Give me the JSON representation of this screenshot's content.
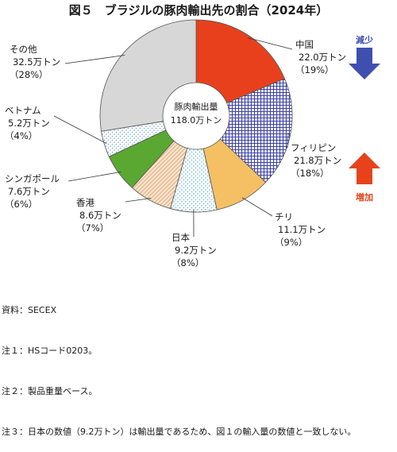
{
  "title": "図５　ブラジルの豚肉輸出先の割合（2024年）",
  "center_label": {
    "line1": "豚肉輸出量",
    "line2": "118.0万トン"
  },
  "trend_labels": {
    "decrease": "減少",
    "increase": "増加"
  },
  "colors": {
    "中国": "#e8401c",
    "フィリピン": "#3a3fa6",
    "チリ": "#f5c064",
    "日本": "#a6d8e6",
    "香港": "#f0c9a0",
    "シンガポール": "#5aa832",
    "ベトナム": "#9fc0e0",
    "その他": "#d7d7d7",
    "decrease_arrow": "#3f4fb0",
    "increase_arrow": "#e6431c"
  },
  "chart_data": {
    "type": "pie",
    "donut": true,
    "unit": "万トン",
    "total": 118.0,
    "categories": [
      "中国",
      "フィリピン",
      "チリ",
      "日本",
      "香港",
      "シンガポール",
      "ベトナム",
      "その他"
    ],
    "values": [
      22.0,
      21.8,
      11.1,
      9.2,
      8.6,
      7.6,
      5.2,
      32.5
    ],
    "percent": [
      19,
      18,
      9,
      8,
      7,
      6,
      4,
      28
    ],
    "value_labels": [
      "22.0万トン",
      "21.8万トン",
      "11.1万トン",
      "9.2万トン",
      "8.6万トン",
      "7.6万トン",
      "5.2万トン",
      "32.5万トン"
    ],
    "percent_labels": [
      "（19%）",
      "（18%）",
      "（9%）",
      "（8%）",
      "（7%）",
      "（6%）",
      "（4%）",
      "（28%）"
    ],
    "trend": {
      "減少": [
        "中国"
      ],
      "増加": [
        "フィリピン"
      ]
    }
  },
  "notes": [
    "資料：SECEX",
    "注１：HSコード0203。",
    "注２：製品重量ベース。",
    "注３：日本の数値（9.2万トン）は輸出量であるため、図１の輸入量の数値と一致しない。"
  ]
}
